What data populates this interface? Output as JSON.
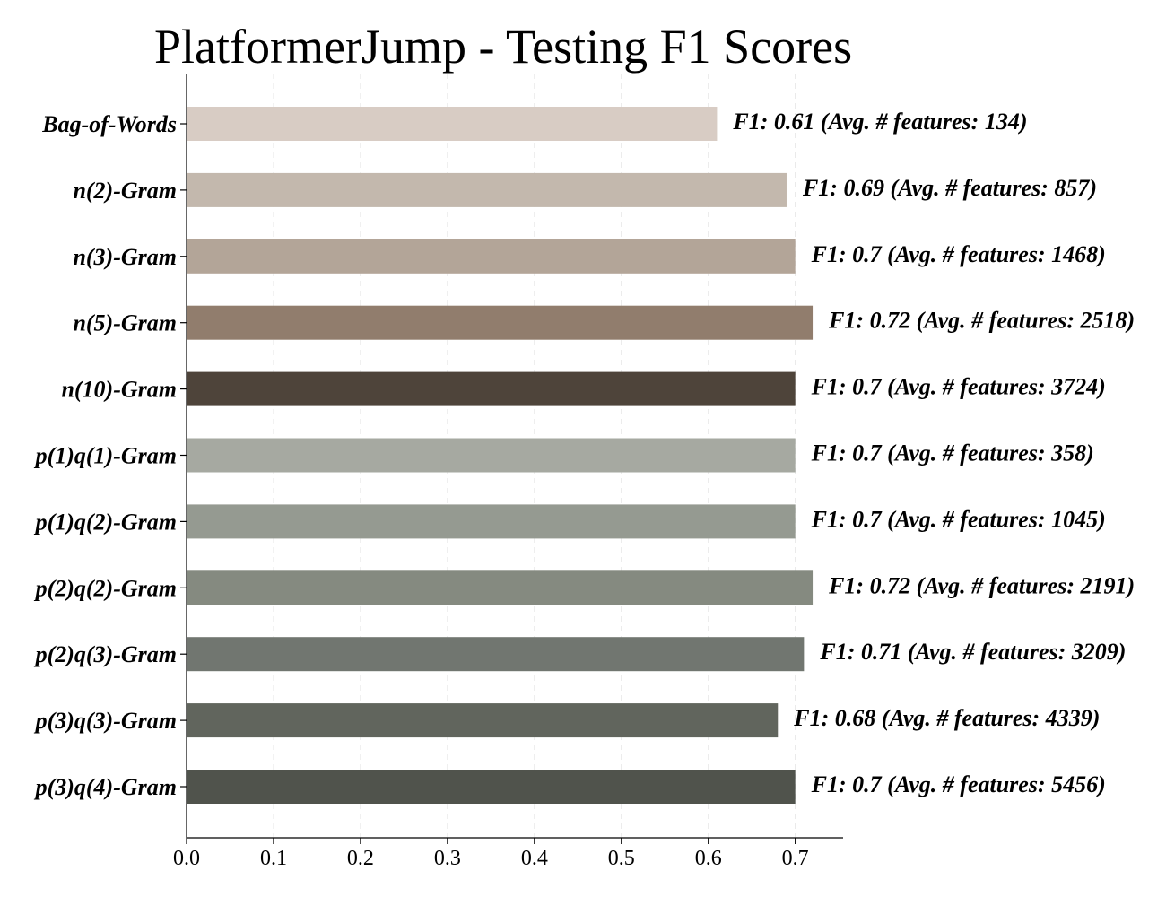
{
  "chart_data": {
    "type": "bar",
    "orientation": "horizontal",
    "title": "PlatformerJump - Testing F1 Scores",
    "xlabel": "",
    "ylabel": "",
    "xlim": [
      0,
      0.755
    ],
    "xticks": [
      "0.0",
      "0.1",
      "0.2",
      "0.3",
      "0.4",
      "0.5",
      "0.6",
      "0.7"
    ],
    "grid": "vertical dashed",
    "categories": [
      "Bag-of-Words",
      "n(2)-Gram",
      "n(3)-Gram",
      "n(5)-Gram",
      "n(10)-Gram",
      "p(1)q(1)-Gram",
      "p(1)q(2)-Gram",
      "p(2)q(2)-Gram",
      "p(2)q(3)-Gram",
      "p(3)q(3)-Gram",
      "p(3)q(4)-Gram"
    ],
    "values": [
      0.61,
      0.69,
      0.7,
      0.72,
      0.7,
      0.7,
      0.7,
      0.72,
      0.71,
      0.68,
      0.7
    ],
    "data_labels": [
      "F1: 0.61 (Avg. # features: 134)",
      "F1: 0.69 (Avg. # features: 857)",
      "F1: 0.7 (Avg. # features: 1468)",
      "F1: 0.72 (Avg. # features: 2518)",
      "F1: 0.7 (Avg. # features: 3724)",
      "F1: 0.7 (Avg. # features: 358)",
      "F1: 0.7 (Avg. # features: 1045)",
      "F1: 0.72 (Avg. # features: 2191)",
      "F1: 0.71 (Avg. # features: 3209)",
      "F1: 0.68 (Avg. # features: 4339)",
      "F1: 0.7 (Avg. # features: 5456)"
    ],
    "colors": [
      "#d8ccc4",
      "#c3b8ad",
      "#b3a598",
      "#917d6d",
      "#4e443a",
      "#a6a9a1",
      "#959a91",
      "#858a80",
      "#717670",
      "#61655d",
      "#50534c"
    ]
  }
}
